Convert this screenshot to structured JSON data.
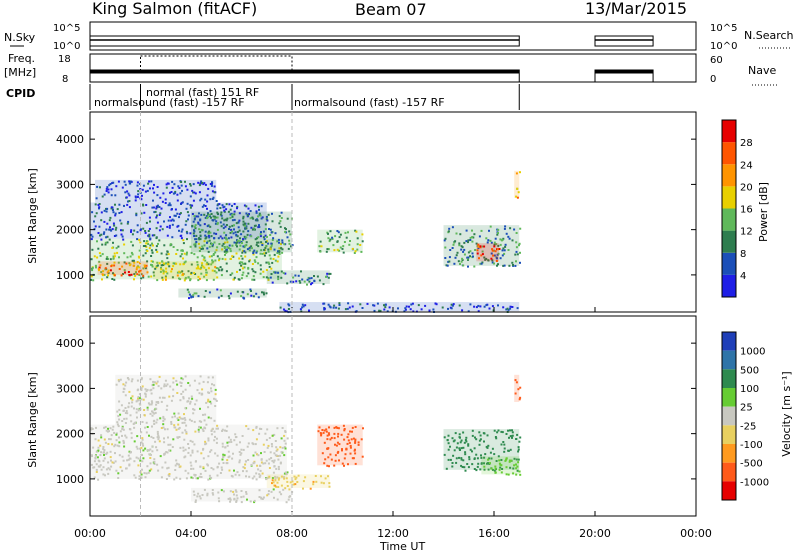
{
  "header": {
    "station": "King Salmon (fitACF)",
    "beam": "Beam 07",
    "date": "13/Mar/2015"
  },
  "aux_panels": {
    "nsky_label": "N.Sky",
    "nsearch_label": "N.Search",
    "nsky_ticks": [
      "10^5",
      "10^0"
    ],
    "freq_label_line1": "Freq.",
    "freq_label_line2": "[MHz]",
    "freq_ticks": [
      "18",
      "8"
    ],
    "nave_label": "Nave",
    "nave_ticks": [
      "60",
      "0"
    ],
    "cpid_label": "CPID",
    "cpid_segments": [
      {
        "text": "normal (fast) 151 RF",
        "start": 2.0,
        "end": 8.0,
        "row": 0
      },
      {
        "text": "normalsound (fast) -157 RF",
        "start": 0.0,
        "end": 8.0,
        "row": 1
      },
      {
        "text": "normalsound (fast) -157 RF",
        "start": 8.0,
        "end": 17.0,
        "row": 1
      }
    ]
  },
  "axes": {
    "x_ticks": [
      "00:00",
      "04:00",
      "08:00",
      "12:00",
      "16:00",
      "20:00",
      "00:00"
    ],
    "xlabel": "Time UT",
    "ylabel": "Slant Range [km]",
    "y_ticks": [
      "1000",
      "2000",
      "3000",
      "4000"
    ]
  },
  "colorbars": {
    "power": {
      "label": "Power [dB]",
      "ticks": [
        "4",
        "8",
        "12",
        "16",
        "20",
        "24",
        "28"
      ],
      "colors": [
        "#1f1fe6",
        "#1b4fb8",
        "#2e7d4f",
        "#5fb85a",
        "#e8d000",
        "#ff9400",
        "#ff5500",
        "#e60000"
      ]
    },
    "velocity": {
      "label": "Velocity [m s⁻¹]",
      "ticks": [
        "1000",
        "500",
        "100",
        "25",
        "-25",
        "-100",
        "-500",
        "-1000"
      ],
      "colors": [
        "#1f3fb8",
        "#2e74a8",
        "#2e8a4f",
        "#66cc33",
        "#c8c8c0",
        "#e8d060",
        "#ff9a1f",
        "#ff5a1a",
        "#e60000"
      ]
    }
  },
  "chart_data": [
    {
      "type": "heatmap",
      "name": "Power",
      "xlabel": "Time UT",
      "ylabel": "Slant Range [km]",
      "xlim": [
        0,
        24
      ],
      "ylim": [
        180,
        4600
      ],
      "clim": [
        0,
        32
      ],
      "units": "dB",
      "blobs": [
        {
          "t0": 0.0,
          "t1": 7.6,
          "r0": 900,
          "r1": 1800,
          "v": 14
        },
        {
          "t0": 0.3,
          "t1": 2.3,
          "r0": 1000,
          "r1": 1300,
          "v": 24
        },
        {
          "t0": 2.5,
          "t1": 5.0,
          "r0": 900,
          "r1": 1300,
          "v": 16
        },
        {
          "t0": 0.0,
          "t1": 7.0,
          "r0": 1800,
          "r1": 2600,
          "v": 6
        },
        {
          "t0": 0.2,
          "t1": 5.0,
          "r0": 2600,
          "r1": 3100,
          "v": 4
        },
        {
          "t0": 4.0,
          "t1": 8.0,
          "r0": 1500,
          "r1": 2400,
          "v": 10
        },
        {
          "t0": 3.5,
          "t1": 7.0,
          "r0": 500,
          "r1": 700,
          "v": 8
        },
        {
          "t0": 7.0,
          "t1": 9.5,
          "r0": 800,
          "r1": 1100,
          "v": 8
        },
        {
          "t0": 9.0,
          "t1": 10.8,
          "r0": 1500,
          "r1": 2000,
          "v": 12
        },
        {
          "t0": 14.0,
          "t1": 17.0,
          "r0": 1200,
          "r1": 2100,
          "v": 10
        },
        {
          "t0": 15.3,
          "t1": 16.2,
          "r0": 1300,
          "r1": 1700,
          "v": 28
        },
        {
          "t0": 16.8,
          "t1": 17.0,
          "r0": 2700,
          "r1": 3300,
          "v": 20
        },
        {
          "t0": 7.5,
          "t1": 17.0,
          "r0": 200,
          "r1": 400,
          "v": 5
        }
      ]
    },
    {
      "type": "heatmap",
      "name": "Velocity",
      "xlabel": "Time UT",
      "ylabel": "Slant Range [km]",
      "xlim": [
        0,
        24
      ],
      "ylim": [
        180,
        4600
      ],
      "clim": [
        -1000,
        1000
      ],
      "units": "m s-1",
      "blobs": [
        {
          "t0": 0.0,
          "t1": 7.8,
          "r0": 1000,
          "r1": 2200,
          "v": 0
        },
        {
          "t0": 1.0,
          "t1": 5.0,
          "r0": 2200,
          "r1": 3300,
          "v": 0
        },
        {
          "t0": 4.0,
          "t1": 8.0,
          "r0": 500,
          "r1": 800,
          "v": 0
        },
        {
          "t0": 7.0,
          "t1": 9.5,
          "r0": 800,
          "r1": 1100,
          "v": -80
        },
        {
          "t0": 9.0,
          "t1": 10.8,
          "r0": 1300,
          "r1": 2200,
          "v": -600
        },
        {
          "t0": 14.0,
          "t1": 17.0,
          "r0": 1200,
          "r1": 2100,
          "v": 300
        },
        {
          "t0": 15.5,
          "t1": 17.0,
          "r0": 1100,
          "r1": 1500,
          "v": 60
        },
        {
          "t0": 16.8,
          "t1": 17.0,
          "r0": 2700,
          "r1": 3300,
          "v": -600
        }
      ]
    }
  ]
}
